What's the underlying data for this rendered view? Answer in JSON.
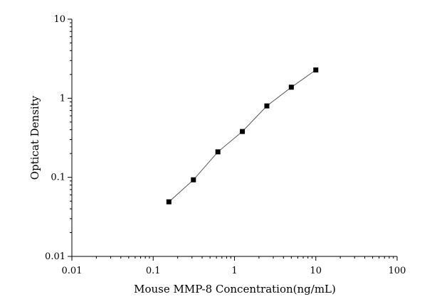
{
  "chart_data": {
    "type": "scatter",
    "title": "",
    "xlabel": "Mouse MMP-8 Concentration(ng/mL)",
    "ylabel": "Opticat Density",
    "x_scale": "log",
    "y_scale": "log",
    "xlim": [
      0.01,
      100
    ],
    "ylim": [
      0.01,
      10
    ],
    "x_ticks": [
      {
        "value": 0.01,
        "label": "0.01"
      },
      {
        "value": 0.1,
        "label": "0.1"
      },
      {
        "value": 1,
        "label": "1"
      },
      {
        "value": 10,
        "label": "10"
      },
      {
        "value": 100,
        "label": "100"
      }
    ],
    "y_ticks": [
      {
        "value": 0.01,
        "label": "0.01"
      },
      {
        "value": 0.1,
        "label": "0.1"
      },
      {
        "value": 1,
        "label": "1"
      },
      {
        "value": 10,
        "label": "10"
      }
    ],
    "grid": false,
    "legend": "none",
    "marker": "square",
    "fit_line": true,
    "colors": {
      "marker": "#000000",
      "line": "#555555",
      "axis": "#000000"
    },
    "series": [
      {
        "x": [
          0.156,
          0.3125,
          0.625,
          1.25,
          2.5,
          5,
          10
        ],
        "y": [
          0.049,
          0.093,
          0.21,
          0.38,
          0.8,
          1.38,
          2.28
        ]
      }
    ]
  }
}
